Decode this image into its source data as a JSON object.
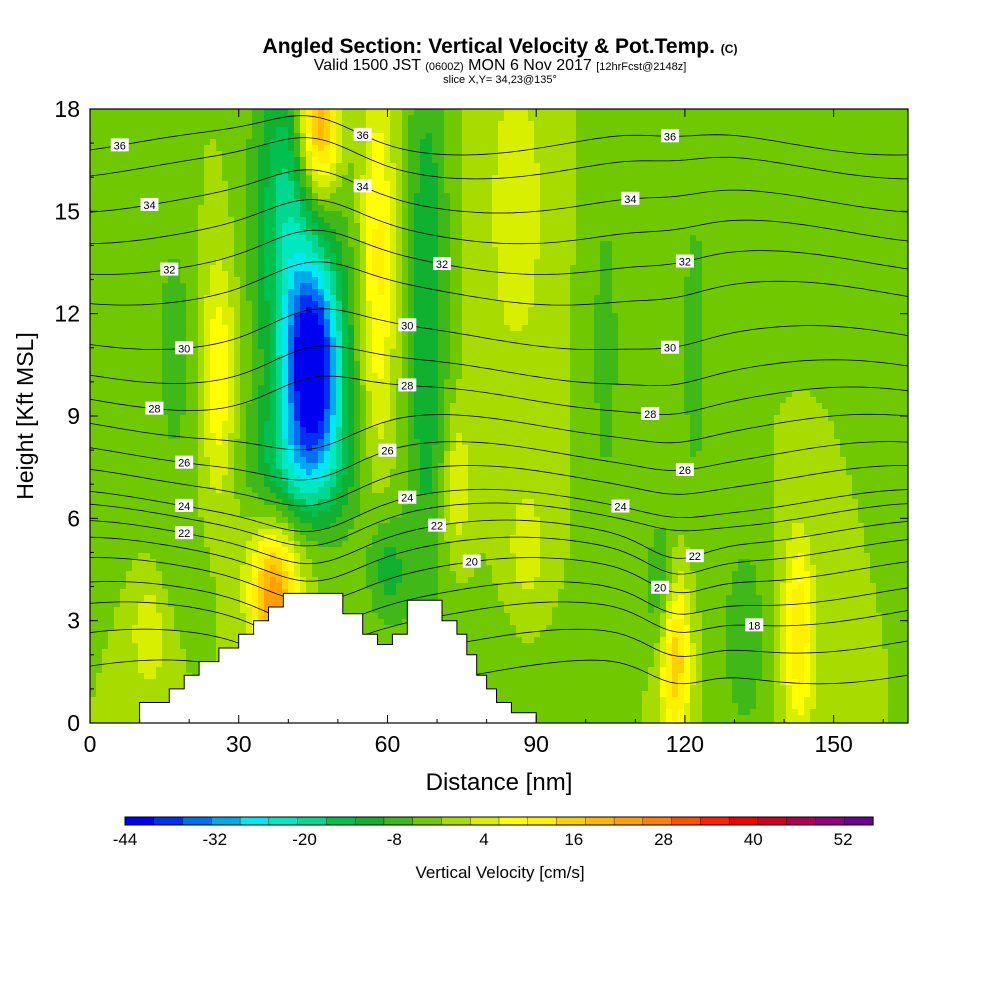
{
  "header": {
    "title_main": "Angled Section: Vertical Velocity & Pot.Temp.",
    "title_tag": "(C)",
    "valid_prefix": "Valid 1500 JST",
    "valid_z": "(0600Z)",
    "valid_date": "MON 6 Nov 2017",
    "valid_fcst": "[12hrFcst@2148z]",
    "slice": "slice X,Y= 34,23@135°"
  },
  "chart_data": {
    "type": "heatmap",
    "xlabel": "Distance [nm]",
    "ylabel": "Height [Kft MSL]",
    "xlim": [
      0,
      165
    ],
    "ylim": [
      0,
      18
    ],
    "x_ticks": [
      "0",
      "30",
      "60",
      "90",
      "120",
      "150"
    ],
    "y_ticks": [
      "0",
      "3",
      "6",
      "9",
      "12",
      "15",
      "18"
    ],
    "colorbar": {
      "label": "Vertical Velocity [cm/s]",
      "tick_labels": [
        "-44",
        "-32",
        "-20",
        "-8",
        "4",
        "16",
        "28",
        "40",
        "52"
      ],
      "levels": [
        -44,
        -40,
        -36,
        -32,
        -28,
        -24,
        -20,
        -16,
        -12,
        -8,
        -4,
        0,
        4,
        8,
        12,
        16,
        20,
        24,
        28,
        32,
        36,
        40,
        44,
        48,
        52,
        56
      ],
      "colors": [
        "#0000f0",
        "#0030f0",
        "#0070f0",
        "#00a8f0",
        "#00e8f0",
        "#00e8c0",
        "#00d890",
        "#00c050",
        "#10b030",
        "#40b818",
        "#70c800",
        "#a8dc00",
        "#d8f000",
        "#ffff00",
        "#fff000",
        "#ffd000",
        "#ffb800",
        "#ffa000",
        "#ff8000",
        "#ff5000",
        "#ff2000",
        "#f00000",
        "#d00020",
        "#b00050",
        "#900080",
        "#700090"
      ]
    },
    "background_velocity": 0,
    "velocity_cells": [
      {
        "x": 45,
        "y": 10.5,
        "sx": 3.5,
        "sy": 1.8,
        "v": -32
      },
      {
        "x": 44,
        "y": 11.5,
        "sx": 6,
        "sy": 4.5,
        "v": -22
      },
      {
        "x": 42,
        "y": 7.5,
        "sx": 8,
        "sy": 1.3,
        "v": -10
      },
      {
        "x": 40,
        "y": 16,
        "sx": 5,
        "sy": 3,
        "v": -10
      },
      {
        "x": 68,
        "y": 12,
        "sx": 3,
        "sy": 6,
        "v": -12
      },
      {
        "x": 60,
        "y": 4.5,
        "sx": 3,
        "sy": 1.2,
        "v": -10
      },
      {
        "x": 116,
        "y": 4,
        "sx": 2.5,
        "sy": 1.5,
        "v": -12
      },
      {
        "x": 132,
        "y": 2.5,
        "sx": 3,
        "sy": 2,
        "v": -8
      },
      {
        "x": 104,
        "y": 11,
        "sx": 3,
        "sy": 5,
        "v": -5
      },
      {
        "x": 122,
        "y": 11,
        "sx": 3,
        "sy": 5,
        "v": -5
      },
      {
        "x": 17,
        "y": 11,
        "sx": 3,
        "sy": 3,
        "v": -6
      },
      {
        "x": 15,
        "y": 4.5,
        "sx": 6,
        "sy": 1.2,
        "v": -4
      },
      {
        "x": 140,
        "y": 16,
        "sx": 6,
        "sy": 2,
        "v": -4
      },
      {
        "x": 80,
        "y": 2,
        "sx": 10,
        "sy": 1.5,
        "v": -2
      },
      {
        "x": 46,
        "y": 17.5,
        "sx": 3,
        "sy": 1.5,
        "v": 28
      },
      {
        "x": 46,
        "y": 15,
        "sx": 4,
        "sy": 3,
        "v": 8
      },
      {
        "x": 58,
        "y": 13.5,
        "sx": 2.5,
        "sy": 4,
        "v": 14
      },
      {
        "x": 37,
        "y": 3.5,
        "sx": 3,
        "sy": 1.2,
        "v": 24
      },
      {
        "x": 40,
        "y": 5,
        "sx": 6,
        "sy": 1.5,
        "v": 10
      },
      {
        "x": 118,
        "y": 2.2,
        "sx": 2.2,
        "sy": 2.0,
        "v": 22
      },
      {
        "x": 143,
        "y": 2.6,
        "sx": 2.2,
        "sy": 2.0,
        "v": 16
      },
      {
        "x": 26,
        "y": 10,
        "sx": 2.5,
        "sy": 2.5,
        "v": 12
      },
      {
        "x": 74,
        "y": 7,
        "sx": 2,
        "sy": 1.5,
        "v": 8
      },
      {
        "x": 86,
        "y": 15,
        "sx": 5,
        "sy": 4,
        "v": 6
      },
      {
        "x": 88,
        "y": 5,
        "sx": 3,
        "sy": 1.5,
        "v": 6
      },
      {
        "x": 12,
        "y": 3,
        "sx": 3,
        "sy": 1.5,
        "v": 8
      }
    ],
    "terrain": [
      [
        0,
        0
      ],
      [
        10,
        0
      ],
      [
        10,
        0.6
      ],
      [
        16,
        0.6
      ],
      [
        16,
        1.0
      ],
      [
        19,
        1.0
      ],
      [
        19,
        1.4
      ],
      [
        22,
        1.4
      ],
      [
        22,
        1.8
      ],
      [
        26,
        1.8
      ],
      [
        26,
        2.2
      ],
      [
        30,
        2.2
      ],
      [
        30,
        2.6
      ],
      [
        33,
        2.6
      ],
      [
        33,
        3.0
      ],
      [
        36,
        3.0
      ],
      [
        36,
        3.4
      ],
      [
        39,
        3.4
      ],
      [
        39,
        3.8
      ],
      [
        51,
        3.8
      ],
      [
        51,
        3.2
      ],
      [
        55,
        3.2
      ],
      [
        55,
        2.6
      ],
      [
        58,
        2.6
      ],
      [
        58,
        2.3
      ],
      [
        61,
        2.3
      ],
      [
        61,
        2.6
      ],
      [
        64,
        2.6
      ],
      [
        64,
        3.6
      ],
      [
        71,
        3.6
      ],
      [
        71,
        3.0
      ],
      [
        74,
        3.0
      ],
      [
        74,
        2.6
      ],
      [
        76,
        2.6
      ],
      [
        76,
        2.0
      ],
      [
        78,
        2.0
      ],
      [
        78,
        1.4
      ],
      [
        80,
        1.4
      ],
      [
        80,
        1.0
      ],
      [
        82,
        1.0
      ],
      [
        82,
        0.6
      ],
      [
        85,
        0.6
      ],
      [
        85,
        0.3
      ],
      [
        90,
        0.3
      ],
      [
        90,
        0
      ]
    ],
    "theta_contours": [
      {
        "value": 36,
        "y": 17.0,
        "label_x": [
          6,
          55,
          117
        ]
      },
      {
        "value": 35,
        "y": 16.3,
        "label_x": []
      },
      {
        "value": 34,
        "y": 15.3,
        "label_x": [
          12,
          55,
          109
        ]
      },
      {
        "value": 33,
        "y": 14.4,
        "label_x": []
      },
      {
        "value": 32,
        "y": 13.5,
        "label_x": [
          16,
          71,
          120
        ]
      },
      {
        "value": 31,
        "y": 12.6,
        "label_x": []
      },
      {
        "value": 30,
        "y": 11.3,
        "label_x": [
          19,
          64,
          117
        ]
      },
      {
        "value": 29,
        "y": 10.3,
        "label_x": []
      },
      {
        "value": 28,
        "y": 9.5,
        "label_x": [
          13,
          64,
          113
        ]
      },
      {
        "value": 27,
        "y": 8.7,
        "label_x": []
      },
      {
        "value": 26,
        "y": 7.9,
        "label_x": [
          19,
          60,
          120
        ]
      },
      {
        "value": 25,
        "y": 7.2,
        "label_x": []
      },
      {
        "value": 24,
        "y": 6.5,
        "label_x": [
          19,
          64,
          107
        ]
      },
      {
        "value": 23,
        "y": 6.1,
        "label_x": []
      },
      {
        "value": 22,
        "y": 5.6,
        "label_x": [
          19,
          70,
          122
        ]
      },
      {
        "value": 21,
        "y": 5.1,
        "label_x": []
      },
      {
        "value": 20,
        "y": 4.5,
        "label_x": [
          77,
          115
        ]
      },
      {
        "value": 19,
        "y": 3.8,
        "label_x": []
      },
      {
        "value": 18,
        "y": 3.2,
        "label_x": [
          134
        ]
      },
      {
        "value": 17,
        "y": 2.4,
        "label_x": []
      },
      {
        "value": 16,
        "y": 1.5,
        "label_x": []
      }
    ]
  }
}
